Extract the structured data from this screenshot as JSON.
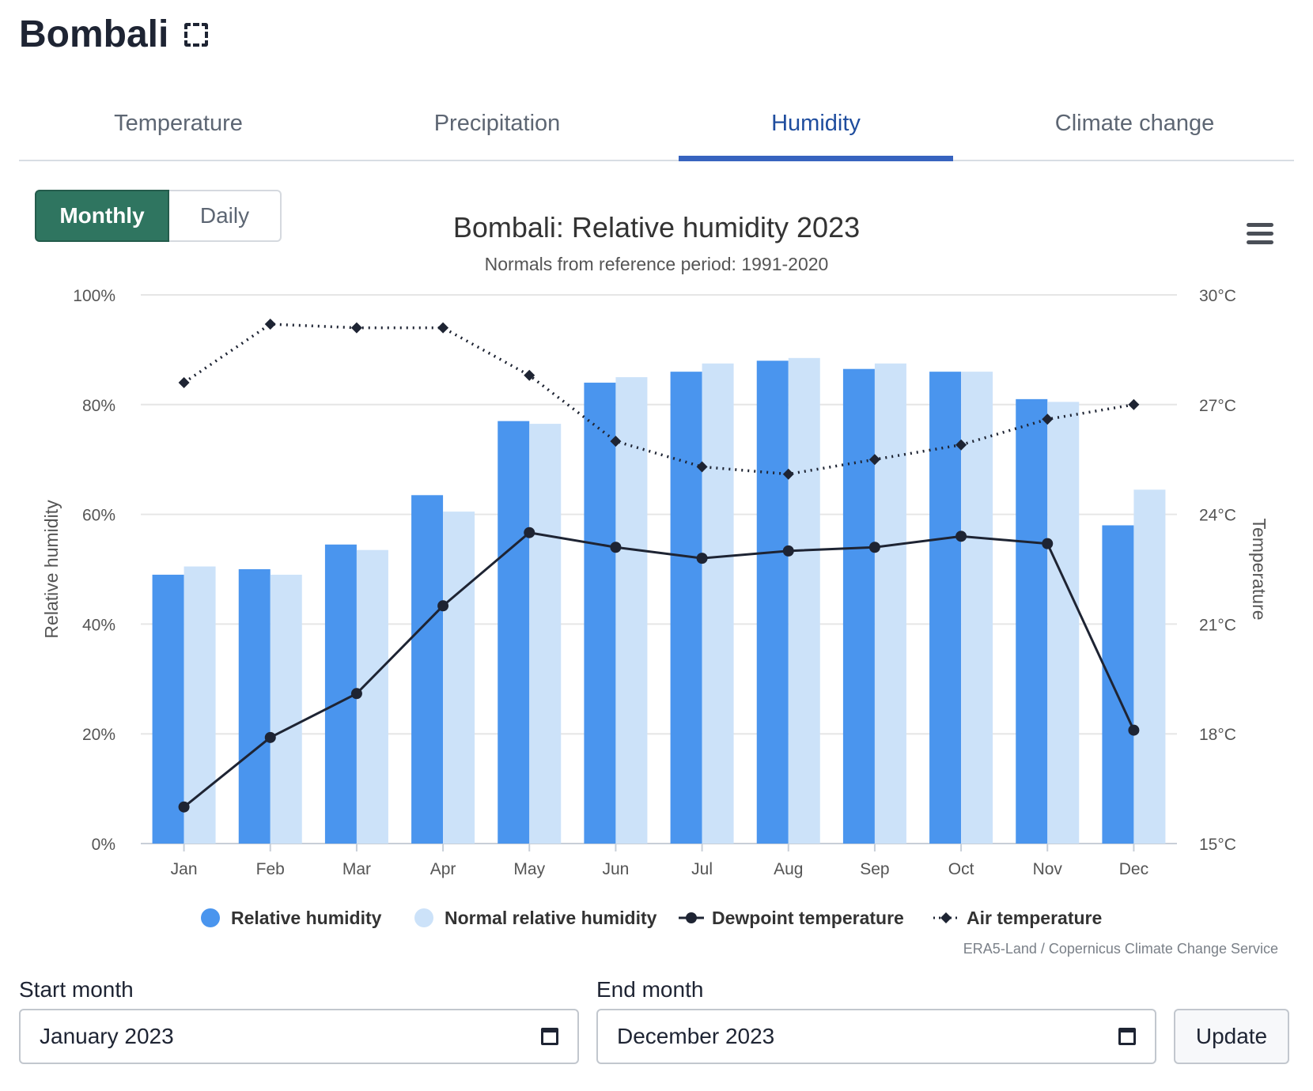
{
  "page": {
    "title": "Bombali",
    "title_icon": "region-select-icon"
  },
  "tabs": [
    {
      "label": "Temperature",
      "active": false
    },
    {
      "label": "Precipitation",
      "active": false
    },
    {
      "label": "Humidity",
      "active": true
    },
    {
      "label": "Climate change",
      "active": false
    }
  ],
  "period_toggle": {
    "monthly_label": "Monthly",
    "daily_label": "Daily",
    "selected": "Monthly"
  },
  "chart_data": {
    "type": "bar",
    "title": "Bombali: Relative humidity 2023",
    "subtitle": "Normals from reference period: 1991-2020",
    "categories": [
      "Jan",
      "Feb",
      "Mar",
      "Apr",
      "May",
      "Jun",
      "Jul",
      "Aug",
      "Sep",
      "Oct",
      "Nov",
      "Dec"
    ],
    "y_left": {
      "label": "Relative humidity",
      "min": 0,
      "max": 100,
      "ticks": [
        "0%",
        "20%",
        "40%",
        "60%",
        "80%",
        "100%"
      ]
    },
    "y_right": {
      "label": "Temperature",
      "min": 15,
      "max": 30,
      "ticks": [
        "15°C",
        "18°C",
        "21°C",
        "24°C",
        "27°C",
        "30°C"
      ]
    },
    "grid": true,
    "legend_position": "bottom-center",
    "series": [
      {
        "name": "Relative humidity",
        "type": "bar",
        "axis": "left",
        "color": "#4a95ee",
        "values": [
          49,
          50,
          54.5,
          63.5,
          77,
          84,
          86,
          88,
          86.5,
          86,
          81,
          58
        ]
      },
      {
        "name": "Normal relative humidity",
        "type": "bar",
        "axis": "left",
        "color": "#cce2f9",
        "values": [
          50.5,
          49,
          53.5,
          60.5,
          76.5,
          85,
          87.5,
          88.5,
          87.5,
          86,
          80.5,
          64.5
        ]
      },
      {
        "name": "Dewpoint temperature",
        "type": "line",
        "axis": "right",
        "color": "#1e2433",
        "marker": "circle",
        "values": [
          16,
          17.9,
          19.1,
          21.5,
          23.5,
          23.1,
          22.8,
          23.0,
          23.1,
          23.4,
          23.2,
          18.1
        ]
      },
      {
        "name": "Air temperature",
        "type": "line",
        "axis": "right",
        "color": "#1e2433",
        "marker": "diamond",
        "dashed": true,
        "values": [
          27.6,
          29.2,
          29.1,
          29.1,
          27.8,
          26.0,
          25.3,
          25.1,
          25.5,
          25.9,
          26.6,
          27.0
        ]
      }
    ],
    "credit": "ERA5-Land / Copernicus Climate Change Service"
  },
  "date_range": {
    "start_label": "Start month",
    "start_value": "January  2023",
    "end_label": "End month",
    "end_value": "December  2023",
    "update_label": "Update"
  }
}
